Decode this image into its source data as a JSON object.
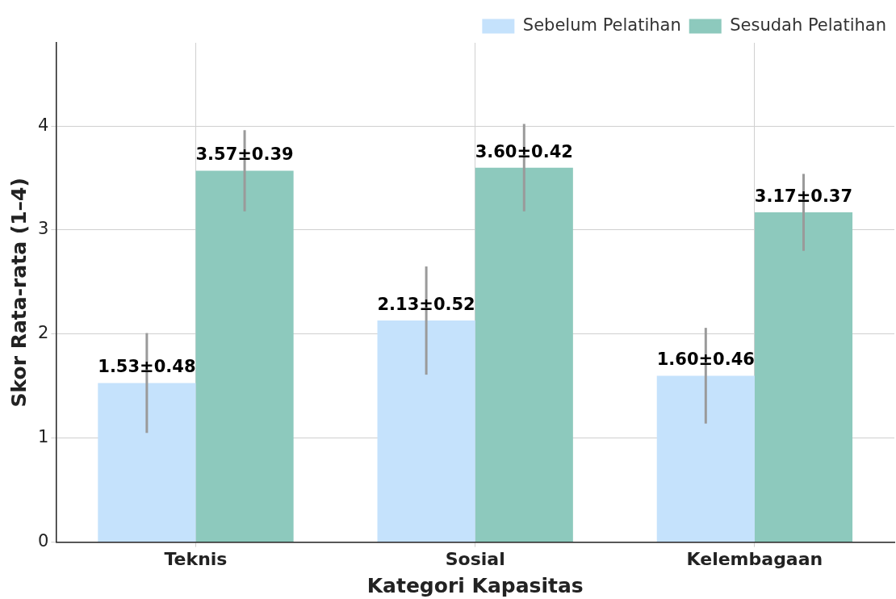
{
  "chart_data": {
    "type": "bar",
    "xlabel": "Kategori Kapasitas",
    "ylabel": "Skor Rata-rata (1–4)",
    "categories": [
      "Teknis",
      "Sosial",
      "Kelembagaan"
    ],
    "series": [
      {
        "name": "Sebelum Pelatihan",
        "color": "#c5e2fc",
        "values": [
          1.53,
          2.13,
          1.6
        ],
        "errors": [
          0.48,
          0.52,
          0.46
        ],
        "value_labels": [
          "1.53±0.48",
          "2.13±0.52",
          "1.60±0.46"
        ]
      },
      {
        "name": "Sesudah Pelatihan",
        "color": "#8dc9bd",
        "values": [
          3.57,
          3.6,
          3.17
        ],
        "errors": [
          0.39,
          0.42,
          0.37
        ],
        "value_labels": [
          "3.57±0.39",
          "3.60±0.42",
          "3.17±0.37"
        ]
      }
    ],
    "ylim": [
      0,
      4.8
    ],
    "yticks": [
      0,
      1,
      2,
      3,
      4
    ],
    "grid": true,
    "legend": "top right"
  }
}
